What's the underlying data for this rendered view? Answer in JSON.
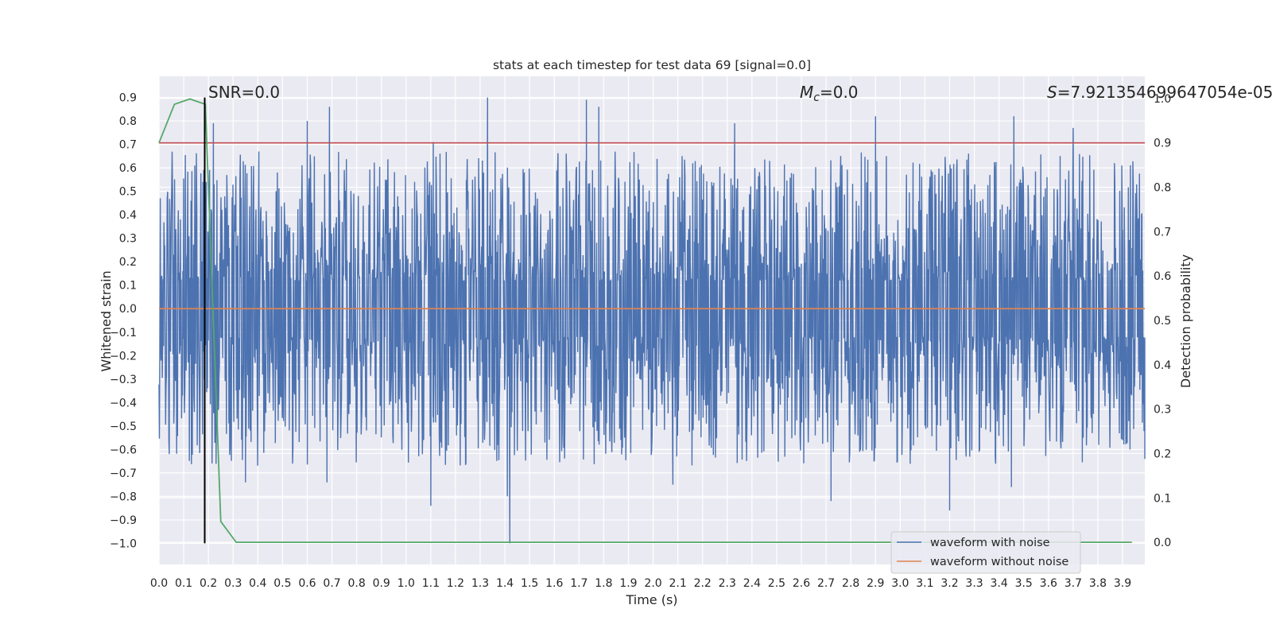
{
  "chart_data": {
    "type": "line",
    "title": "stats at each timestep for test data 69 [signal=0.0]",
    "xlabel": "Time (s)",
    "ylabel": "Whitened strain",
    "y2label": "Detection probability",
    "xlim": [
      0.0,
      3.99
    ],
    "ylim": [
      -1.09,
      0.99
    ],
    "y2lim": [
      -0.05,
      1.05
    ],
    "xticks": [
      "0.0",
      "0.1",
      "0.2",
      "0.3",
      "0.4",
      "0.5",
      "0.6",
      "0.7",
      "0.8",
      "0.9",
      "1.0",
      "1.1",
      "1.2",
      "1.3",
      "1.4",
      "1.5",
      "1.6",
      "1.7",
      "1.8",
      "1.9",
      "2.0",
      "2.1",
      "2.2",
      "2.3",
      "2.4",
      "2.5",
      "2.6",
      "2.7",
      "2.8",
      "2.9",
      "3.0",
      "3.1",
      "3.2",
      "3.3",
      "3.4",
      "3.5",
      "3.6",
      "3.7",
      "3.8",
      "3.9"
    ],
    "yticks": [
      "0.9",
      "0.8",
      "0.7",
      "0.6",
      "0.5",
      "0.4",
      "0.3",
      "0.2",
      "0.1",
      "0.0",
      "−0.1",
      "−0.2",
      "−0.3",
      "−0.4",
      "−0.5",
      "−0.6",
      "−0.7",
      "−0.8",
      "−0.9",
      "−1.0"
    ],
    "y2ticks": [
      "1.0",
      "0.9",
      "0.8",
      "0.7",
      "0.6",
      "0.5",
      "0.4",
      "0.3",
      "0.2",
      "0.1",
      "0.0"
    ],
    "annotations": {
      "snr": "SNR=0.0",
      "mc_symbol": "M",
      "mc_sub": "c",
      "mc_value": "=0.0",
      "s_symbol": "S",
      "s_value": "=7.921354699647054e-05"
    },
    "threshold": {
      "name": "detection threshold",
      "y2": 0.9,
      "color": "#c44e52"
    },
    "marker_line": {
      "x": 0.185,
      "y_from": -1.0,
      "y_to": 0.9,
      "color": "#000000"
    },
    "series": [
      {
        "name": "waveform with noise",
        "color": "#4c72b0",
        "axis": "left",
        "envelope_peaks": [
          {
            "x": 0.22,
            "y": 0.79
          },
          {
            "x": 0.6,
            "y": 0.8
          },
          {
            "x": 0.69,
            "y": 0.86
          },
          {
            "x": 1.11,
            "y": 0.71
          },
          {
            "x": 1.33,
            "y": 0.9
          },
          {
            "x": 1.73,
            "y": 0.89
          },
          {
            "x": 1.78,
            "y": 0.86
          },
          {
            "x": 2.33,
            "y": 0.79
          },
          {
            "x": 2.9,
            "y": 0.82
          },
          {
            "x": 3.46,
            "y": 0.82
          },
          {
            "x": 3.7,
            "y": 0.77
          }
        ],
        "envelope_troughs": [
          {
            "x": 0.35,
            "y": -0.74
          },
          {
            "x": 0.68,
            "y": -0.74
          },
          {
            "x": 1.1,
            "y": -0.84
          },
          {
            "x": 1.41,
            "y": -0.8
          },
          {
            "x": 1.42,
            "y": -1.0
          },
          {
            "x": 2.08,
            "y": -0.75
          },
          {
            "x": 2.72,
            "y": -0.82
          },
          {
            "x": 3.2,
            "y": -0.86
          },
          {
            "x": 3.45,
            "y": -0.76
          },
          {
            "x": 3.9,
            "y": -0.56
          },
          {
            "x": 3.99,
            "y": -0.64
          }
        ]
      },
      {
        "name": "waveform without noise",
        "color": "#dd8452",
        "axis": "left",
        "x": [
          0.0,
          3.99
        ],
        "y": [
          0.0,
          0.0
        ]
      },
      {
        "name": "detection probability",
        "color": "#55a868",
        "axis": "right",
        "x": [
          0.0,
          0.0625,
          0.125,
          0.1875,
          0.25,
          0.3125,
          3.9375
        ],
        "y": [
          0.9,
          0.987,
          0.999,
          0.987,
          0.047,
          0.0,
          0.0
        ]
      }
    ],
    "legend": {
      "position": "lower-right",
      "entries": [
        {
          "label": "waveform with noise",
          "color": "#4c72b0"
        },
        {
          "label": "waveform without noise",
          "color": "#dd8452"
        }
      ]
    }
  }
}
